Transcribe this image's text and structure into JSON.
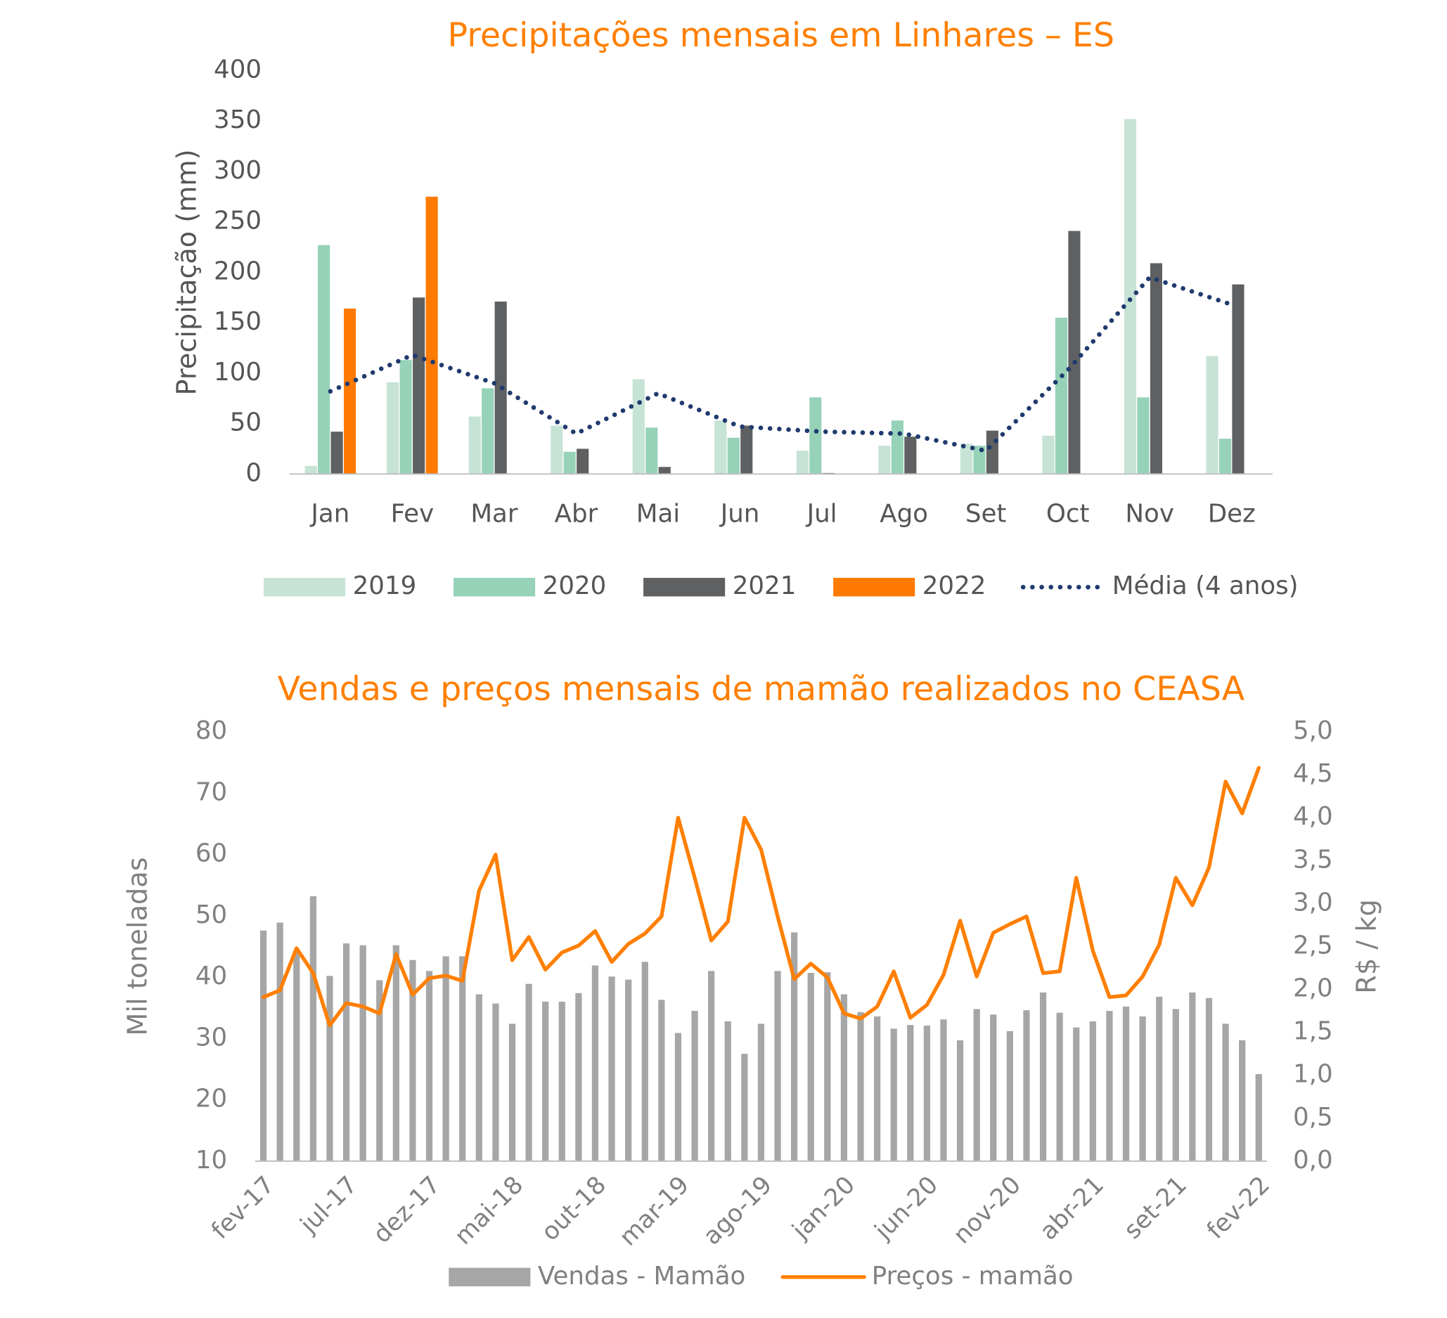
{
  "chart_data": [
    {
      "type": "bar",
      "title": "Precipitações mensais em Linhares – ES",
      "y_label": "Precipitação (mm)",
      "categories": [
        "Jan",
        "Fev",
        "Mar",
        "Abr",
        "Mai",
        "Jun",
        "Jul",
        "Ago",
        "Set",
        "Oct",
        "Nov",
        "Dez"
      ],
      "series": [
        {
          "name": "2019",
          "color": "#c6e3d5",
          "values": [
            8,
            91,
            57,
            48,
            94,
            53,
            23,
            28,
            30,
            38,
            352,
            117
          ]
        },
        {
          "name": "2020",
          "color": "#96d2b8",
          "values": [
            227,
            113,
            85,
            22,
            46,
            36,
            76,
            53,
            28,
            155,
            76,
            35
          ]
        },
        {
          "name": "2021",
          "color": "#5f6062",
          "values": [
            42,
            175,
            171,
            25,
            7,
            48,
            1,
            37,
            43,
            241,
            209,
            188
          ]
        },
        {
          "name": "2022",
          "color": "#ff7a00",
          "values": [
            164,
            275,
            null,
            null,
            null,
            null,
            null,
            null,
            null,
            null,
            null,
            null
          ]
        },
        {
          "name": "Média (4 anos)",
          "type": "line",
          "style": "dotted",
          "color": "#1f3a6e",
          "values": [
            82,
            118,
            90,
            40,
            80,
            47,
            42,
            40,
            23,
            103,
            195,
            168
          ]
        }
      ],
      "ylim": [
        0,
        400
      ],
      "yticks": [
        0,
        50,
        100,
        150,
        200,
        250,
        300,
        350,
        400
      ],
      "grid": false,
      "legend": "bottom"
    },
    {
      "type": "bar",
      "title": "Vendas e preços mensais de mamão realizados no CEASA",
      "y_label": "Mil toneladas",
      "y2_label": "R$ / kg",
      "categories": [
        "fev-17",
        null,
        null,
        null,
        null,
        "jul-17",
        null,
        null,
        null,
        null,
        "dez-17",
        null,
        null,
        null,
        null,
        "mai-18",
        null,
        null,
        null,
        null,
        "out-18",
        null,
        null,
        null,
        null,
        "mar-19",
        null,
        null,
        null,
        null,
        "ago-19",
        null,
        null,
        null,
        null,
        "jan-20",
        null,
        null,
        null,
        null,
        "jun-20",
        null,
        null,
        null,
        null,
        "nov-20",
        null,
        null,
        null,
        null,
        "abr-21",
        null,
        null,
        null,
        null,
        "set-21",
        null,
        null,
        null,
        null,
        "fev-22"
      ],
      "series": [
        {
          "name": "Vendas - Mamão",
          "color": "#a6a6a6",
          "values": [
            47.6,
            48.9,
            44.3,
            53.2,
            40.2,
            45.5,
            45.2,
            39.5,
            45.2,
            42.8,
            41.0,
            43.4,
            43.4,
            37.2,
            35.7,
            32.4,
            38.9,
            36.0,
            36.0,
            37.4,
            41.9,
            40.1,
            39.6,
            42.5,
            36.3,
            30.9,
            34.5,
            41.0,
            32.8,
            27.5,
            32.4,
            41.0,
            47.3,
            40.7,
            40.8,
            37.2,
            34.3,
            33.6,
            31.6,
            32.2,
            32.1,
            33.1,
            29.7,
            34.8,
            33.9,
            31.2,
            34.6,
            37.5,
            34.2,
            31.8,
            32.8,
            34.5,
            35.2,
            33.6,
            36.8,
            34.8,
            37.5,
            36.6,
            32.4,
            29.7,
            24.2
          ]
        },
        {
          "name": "Preços - mamão",
          "type": "line",
          "axis": "y2",
          "color": "#ff7f00",
          "values": [
            1.91,
            1.99,
            2.48,
            2.19,
            1.58,
            1.84,
            1.8,
            1.72,
            2.41,
            1.94,
            2.13,
            2.16,
            2.1,
            3.15,
            3.57,
            2.34,
            2.61,
            2.23,
            2.43,
            2.51,
            2.68,
            2.32,
            2.53,
            2.65,
            2.85,
            4.0,
            3.3,
            2.57,
            2.79,
            4.0,
            3.63,
            2.85,
            2.12,
            2.3,
            2.14,
            1.72,
            1.66,
            1.8,
            2.21,
            1.67,
            1.82,
            2.17,
            2.8,
            2.15,
            2.66,
            2.76,
            2.85,
            2.19,
            2.21,
            3.3,
            2.45,
            1.91,
            1.93,
            2.15,
            2.52,
            3.3,
            2.98,
            3.42,
            4.42,
            4.05,
            4.58
          ]
        }
      ],
      "ylim": [
        10,
        80
      ],
      "yticks": [
        10,
        20,
        30,
        40,
        50,
        60,
        70,
        80
      ],
      "y2lim": [
        0,
        5
      ],
      "y2ticks": [
        {
          "value": 0,
          "label": "0,0"
        },
        {
          "value": 0.5,
          "label": "0,5"
        },
        {
          "value": 1,
          "label": "1,0"
        },
        {
          "value": 1.5,
          "label": "1,5"
        },
        {
          "value": 2,
          "label": "2,0"
        },
        {
          "value": 2.5,
          "label": "2,5"
        },
        {
          "value": 3,
          "label": "3,0"
        },
        {
          "value": 3.5,
          "label": "3,5"
        },
        {
          "value": 4,
          "label": "4,0"
        },
        {
          "value": 4.5,
          "label": "4,5"
        },
        {
          "value": 5,
          "label": "5,0"
        }
      ],
      "grid": false,
      "legend": "bottom"
    }
  ]
}
